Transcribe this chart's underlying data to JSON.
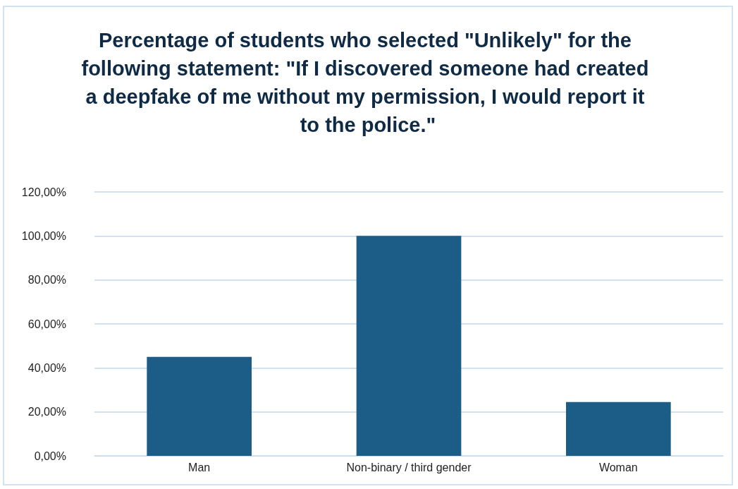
{
  "chart_data": {
    "type": "bar",
    "title": "Percentage of students who selected \"Unlikely\" for the following statement: \"If I discovered someone had created a deepfake of me without my permission, I would report it to the police.\"",
    "categories": [
      "Man",
      "Non-binary / third gender",
      "Woman"
    ],
    "values": [
      45,
      100,
      24.5
    ],
    "color": "#1b5d86",
    "ylim": [
      0,
      120
    ],
    "yticks": [
      {
        "value": 0,
        "label": "0,00%"
      },
      {
        "value": 20,
        "label": "20,00%"
      },
      {
        "value": 40,
        "label": "40,00%"
      },
      {
        "value": 60,
        "label": "60,00%"
      },
      {
        "value": 80,
        "label": "80,00%"
      },
      {
        "value": 100,
        "label": "100,00%"
      },
      {
        "value": 120,
        "label": "120,00%"
      }
    ],
    "grid": "y"
  }
}
